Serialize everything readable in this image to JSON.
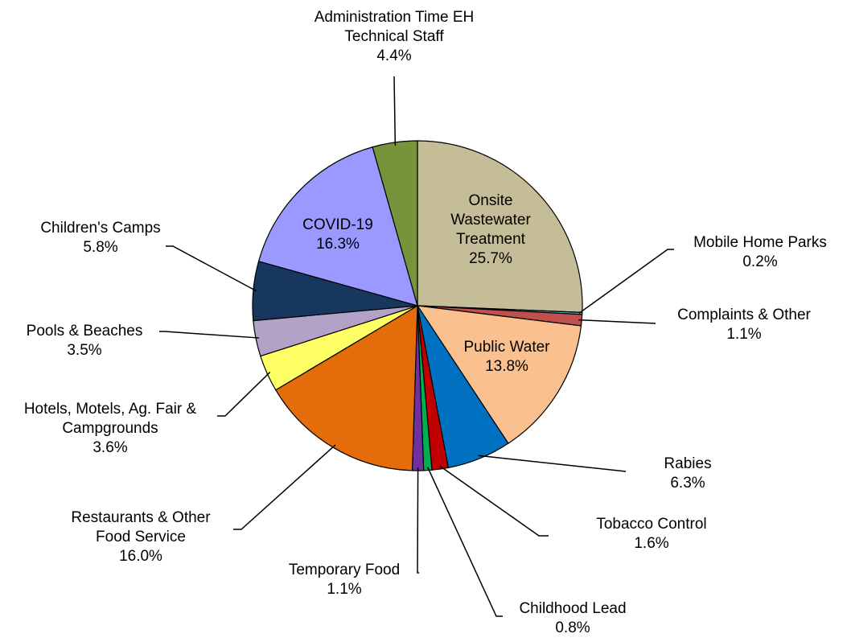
{
  "chart_data": {
    "type": "pie",
    "categories": [
      "Onsite Wastewater Treatment",
      "Mobile Home Parks",
      "Complaints & Other",
      "Public Water",
      "Rabies",
      "Tobacco Control",
      "Childhood Lead",
      "Temporary Food",
      "Restaurants & Other Food Service",
      "Hotels, Motels, Ag. Fair & Campgrounds",
      "Pools & Beaches",
      "Children's Camps",
      "COVID-19",
      "Administration Time EH Technical Staff"
    ],
    "values": [
      25.7,
      0.2,
      1.1,
      13.8,
      6.3,
      1.6,
      0.8,
      1.1,
      16.0,
      3.6,
      3.5,
      5.8,
      16.3,
      4.4
    ],
    "value_labels": [
      "25.7%",
      "0.2%",
      "1.1%",
      "13.8%",
      "6.3%",
      "1.6%",
      "0.8%",
      "1.1%",
      "16.0%",
      "3.6%",
      "3.5%",
      "5.8%",
      "16.3%",
      "4.4%"
    ],
    "colors": [
      "#c4bd97",
      "#4bacc6",
      "#c0504d",
      "#fac090",
      "#0070c0",
      "#c00000",
      "#00b050",
      "#7030a0",
      "#e46c0a",
      "#ffff66",
      "#b3a2c7",
      "#17375e",
      "#9999ff",
      "#77933c"
    ]
  }
}
